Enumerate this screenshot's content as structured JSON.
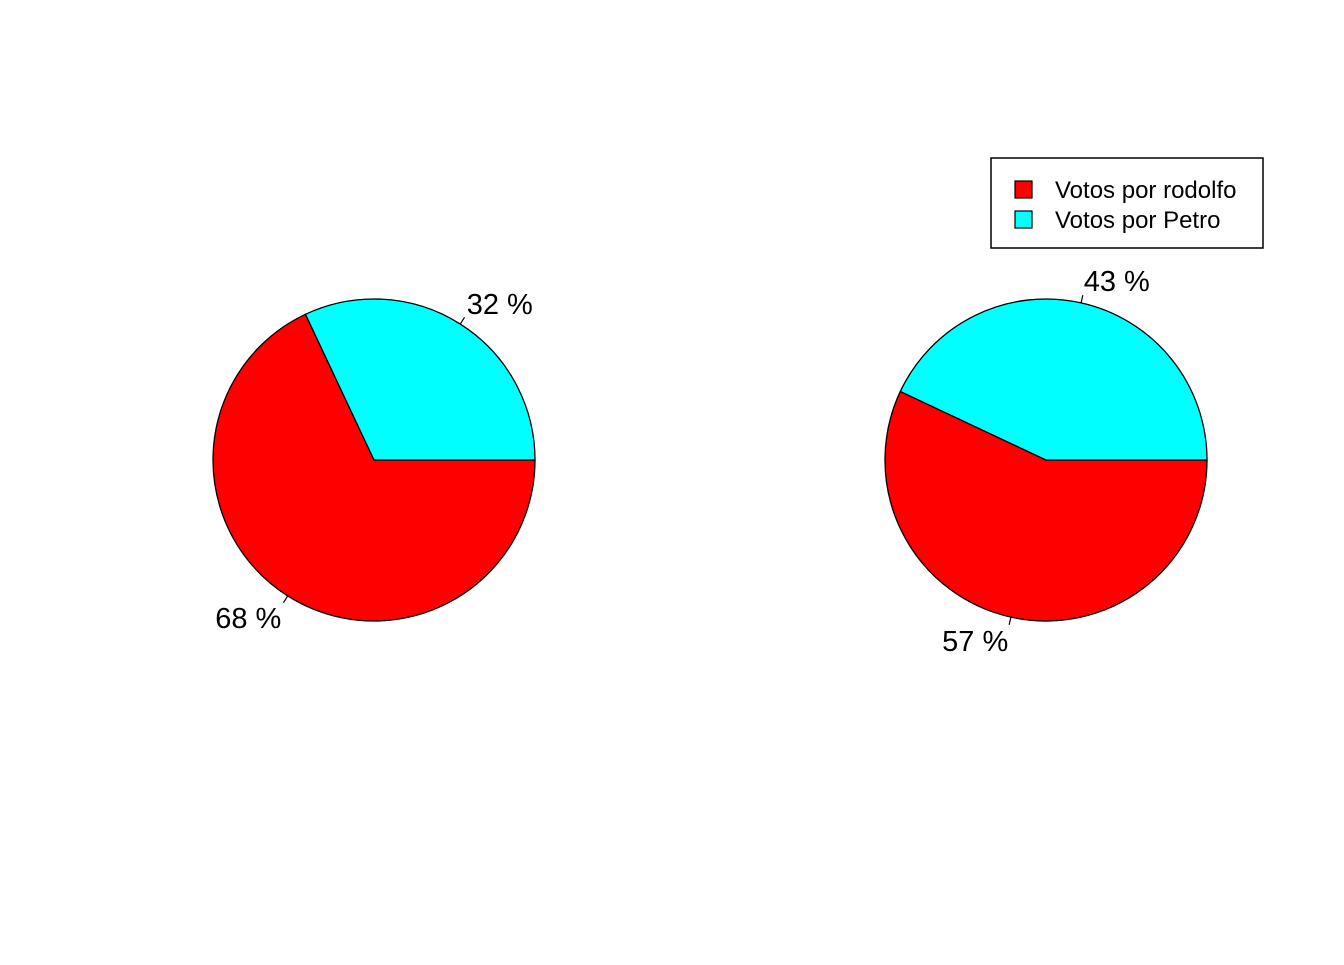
{
  "chart_data": [
    {
      "type": "pie",
      "labels": [
        "Votos por rodolfo",
        "Votos por Petro"
      ],
      "values": [
        68,
        32
      ],
      "slice_labels": [
        "68 %",
        "32 %"
      ],
      "colors": [
        "#ff0000",
        "#00ffff"
      ]
    },
    {
      "type": "pie",
      "labels": [
        "Votos por rodolfo",
        "Votos por Petro"
      ],
      "values": [
        57,
        43
      ],
      "slice_labels": [
        "57 %",
        "43 %"
      ],
      "colors": [
        "#ff0000",
        "#00ffff"
      ]
    }
  ],
  "legend": {
    "placement": "top-right",
    "entries": [
      {
        "label": "Votos por rodolfo",
        "color": "#ff0000"
      },
      {
        "label": "Votos por Petro",
        "color": "#00ffff"
      }
    ]
  }
}
